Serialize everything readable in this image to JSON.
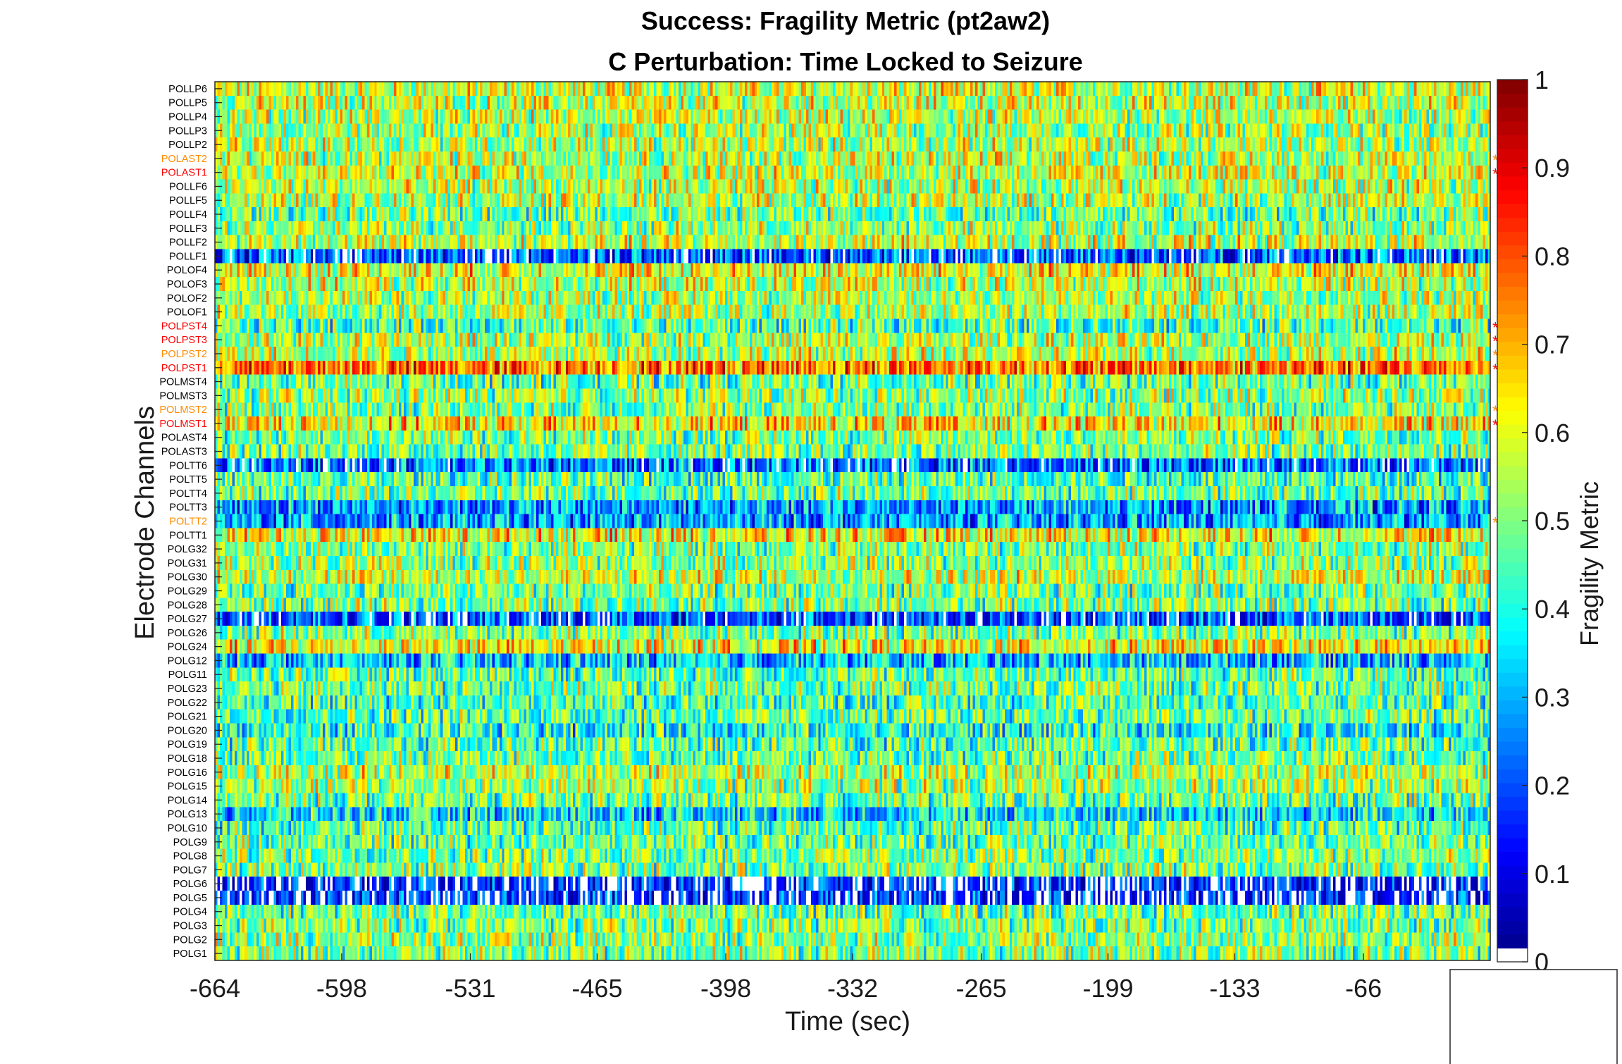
{
  "chart_data": {
    "type": "heatmap",
    "title": "Success: Fragility Metric (pt2aw2)",
    "subtitle": "C Perturbation:  Time Locked to Seizure",
    "xlabel": "Time (sec)",
    "ylabel": "Electrode Channels",
    "colorbar_label": "Fragility Metric",
    "colormap": "jet",
    "colorbar_range": [
      0,
      1
    ],
    "colorbar_ticks": [
      0,
      0.1,
      0.2,
      0.3,
      0.4,
      0.5,
      0.6,
      0.7,
      0.8,
      0.9,
      1
    ],
    "x_ticks": [
      -664,
      -598,
      -531,
      -465,
      -398,
      -332,
      -265,
      -199,
      -133,
      -66
    ],
    "xlim": [
      -664,
      0
    ],
    "legend_box": "bottom-right",
    "marker_colors": {
      "red": "#ff0000",
      "orange": "#ff8c00",
      "black": "#000000"
    },
    "channels": [
      {
        "name": "POLLP6",
        "mean": 0.58,
        "marker": "none"
      },
      {
        "name": "POLLP5",
        "mean": 0.57,
        "marker": "none"
      },
      {
        "name": "POLLP4",
        "mean": 0.55,
        "marker": "none"
      },
      {
        "name": "POLLP3",
        "mean": 0.54,
        "marker": "none"
      },
      {
        "name": "POLLP2",
        "mean": 0.55,
        "marker": "none"
      },
      {
        "name": "POLAST2",
        "mean": 0.56,
        "marker": "orange"
      },
      {
        "name": "POLAST1",
        "mean": 0.58,
        "marker": "red"
      },
      {
        "name": "POLLF6",
        "mean": 0.55,
        "marker": "none"
      },
      {
        "name": "POLLF5",
        "mean": 0.56,
        "marker": "none"
      },
      {
        "name": "POLLF4",
        "mean": 0.48,
        "marker": "none"
      },
      {
        "name": "POLLF3",
        "mean": 0.52,
        "marker": "none"
      },
      {
        "name": "POLLF2",
        "mean": 0.57,
        "marker": "none"
      },
      {
        "name": "POLLF1",
        "mean": 0.2,
        "marker": "none"
      },
      {
        "name": "POLOF4",
        "mean": 0.62,
        "marker": "none"
      },
      {
        "name": "POLOF3",
        "mean": 0.56,
        "marker": "none"
      },
      {
        "name": "POLOF2",
        "mean": 0.55,
        "marker": "none"
      },
      {
        "name": "POLOF1",
        "mean": 0.54,
        "marker": "none"
      },
      {
        "name": "POLPST4",
        "mean": 0.45,
        "marker": "red"
      },
      {
        "name": "POLPST3",
        "mean": 0.55,
        "marker": "red"
      },
      {
        "name": "POLPST2",
        "mean": 0.56,
        "marker": "orange"
      },
      {
        "name": "POLPST1",
        "mean": 0.76,
        "marker": "red"
      },
      {
        "name": "POLMST4",
        "mean": 0.47,
        "marker": "none"
      },
      {
        "name": "POLMST3",
        "mean": 0.52,
        "marker": "none"
      },
      {
        "name": "POLMST2",
        "mean": 0.5,
        "marker": "orange"
      },
      {
        "name": "POLMST1",
        "mean": 0.64,
        "marker": "red"
      },
      {
        "name": "POLAST4",
        "mean": 0.5,
        "marker": "none"
      },
      {
        "name": "POLAST3",
        "mean": 0.49,
        "marker": "none"
      },
      {
        "name": "POLTT6",
        "mean": 0.24,
        "marker": "none"
      },
      {
        "name": "POLTT5",
        "mean": 0.45,
        "marker": "none"
      },
      {
        "name": "POLTT4",
        "mean": 0.48,
        "marker": "none"
      },
      {
        "name": "POLTT3",
        "mean": 0.28,
        "marker": "none"
      },
      {
        "name": "POLTT2",
        "mean": 0.28,
        "marker": "orange"
      },
      {
        "name": "POLTT1",
        "mean": 0.63,
        "marker": "none"
      },
      {
        "name": "POLG32",
        "mean": 0.5,
        "marker": "none"
      },
      {
        "name": "POLG31",
        "mean": 0.52,
        "marker": "none"
      },
      {
        "name": "POLG30",
        "mean": 0.58,
        "marker": "none"
      },
      {
        "name": "POLG29",
        "mean": 0.48,
        "marker": "none"
      },
      {
        "name": "POLG28",
        "mean": 0.5,
        "marker": "none"
      },
      {
        "name": "POLG27",
        "mean": 0.2,
        "marker": "none"
      },
      {
        "name": "POLG26",
        "mean": 0.5,
        "marker": "none"
      },
      {
        "name": "POLG24",
        "mean": 0.62,
        "marker": "none"
      },
      {
        "name": "POLG12",
        "mean": 0.32,
        "marker": "none"
      },
      {
        "name": "POLG11",
        "mean": 0.47,
        "marker": "none"
      },
      {
        "name": "POLG23",
        "mean": 0.48,
        "marker": "none"
      },
      {
        "name": "POLG22",
        "mean": 0.45,
        "marker": "none"
      },
      {
        "name": "POLG21",
        "mean": 0.47,
        "marker": "none"
      },
      {
        "name": "POLG20",
        "mean": 0.4,
        "marker": "none"
      },
      {
        "name": "POLG19",
        "mean": 0.46,
        "marker": "none"
      },
      {
        "name": "POLG18",
        "mean": 0.48,
        "marker": "none"
      },
      {
        "name": "POLG16",
        "mean": 0.56,
        "marker": "none"
      },
      {
        "name": "POLG15",
        "mean": 0.53,
        "marker": "none"
      },
      {
        "name": "POLG14",
        "mean": 0.48,
        "marker": "none"
      },
      {
        "name": "POLG13",
        "mean": 0.35,
        "marker": "none"
      },
      {
        "name": "POLG10",
        "mean": 0.46,
        "marker": "none"
      },
      {
        "name": "POLG9",
        "mean": 0.48,
        "marker": "none"
      },
      {
        "name": "POLG8",
        "mean": 0.5,
        "marker": "none"
      },
      {
        "name": "POLG7",
        "mean": 0.5,
        "marker": "none"
      },
      {
        "name": "POLG6",
        "mean": 0.12,
        "marker": "none"
      },
      {
        "name": "POLG5",
        "mean": 0.13,
        "marker": "none"
      },
      {
        "name": "POLG4",
        "mean": 0.48,
        "marker": "none"
      },
      {
        "name": "POLG3",
        "mean": 0.5,
        "marker": "none"
      },
      {
        "name": "POLG2",
        "mean": 0.52,
        "marker": "none"
      },
      {
        "name": "POLG1",
        "mean": 0.5,
        "marker": "none"
      }
    ]
  }
}
